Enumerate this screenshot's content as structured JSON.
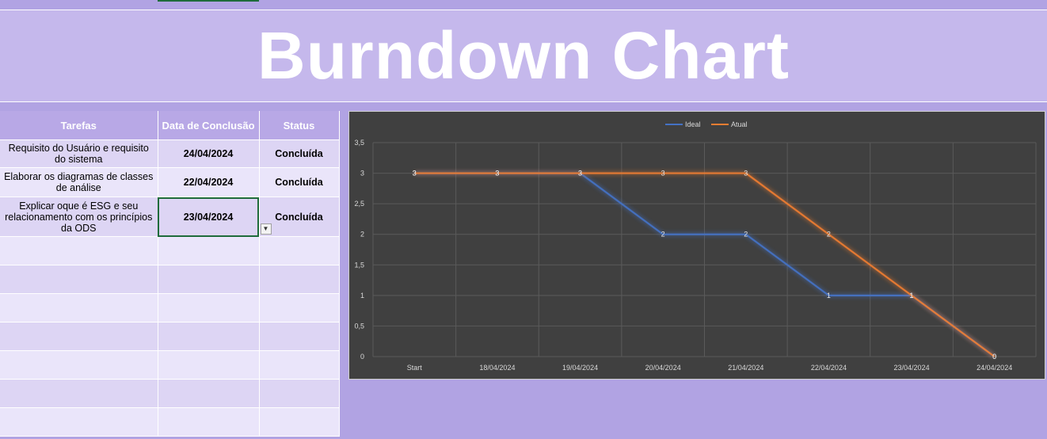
{
  "title": "Burndown Chart",
  "table": {
    "headers": [
      "Tarefas",
      "Data de Conclusão",
      "Status"
    ],
    "rows": [
      {
        "tarefa": "Requisito do Usuário e requisito do sistema",
        "data": "24/04/2024",
        "status": "Concluída"
      },
      {
        "tarefa": "Elaborar os diagramas de classes de análise",
        "data": "22/04/2024",
        "status": "Concluída"
      },
      {
        "tarefa": "Explicar oque é ESG e seu relacionamento com os princípios da ODS",
        "data": "23/04/2024",
        "status": "Concluída"
      }
    ]
  },
  "colors": {
    "ideal": "#4472c4",
    "atual": "#ed7d31",
    "chart_bg": "#404040",
    "banner": "#c5b8ec"
  },
  "chart_data": {
    "type": "line",
    "categories": [
      "Start",
      "18/04/2024",
      "19/04/2024",
      "20/04/2024",
      "21/04/2024",
      "22/04/2024",
      "23/04/2024",
      "24/04/2024"
    ],
    "series": [
      {
        "name": "Ideal",
        "values": [
          3,
          3,
          3,
          2,
          2,
          1,
          1,
          0
        ]
      },
      {
        "name": "Atual",
        "values": [
          3,
          3,
          3,
          3,
          3,
          2,
          1,
          0
        ]
      }
    ],
    "yticks": [
      "0",
      "0,5",
      "1",
      "1,5",
      "2",
      "2,5",
      "3",
      "3,5"
    ],
    "ylim": [
      0,
      3.5
    ],
    "grid": true,
    "legend": "top-center",
    "data_labels": true
  }
}
